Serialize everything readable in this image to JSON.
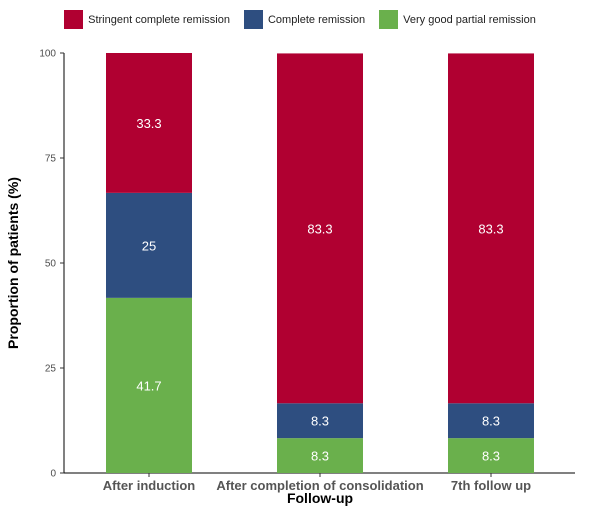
{
  "chart_data": {
    "type": "bar",
    "stacked": true,
    "categories": [
      "After induction",
      "After completion of consolidation",
      "7th follow up"
    ],
    "series": [
      {
        "name": "Very good partial remission",
        "color": "#6ab04c",
        "values": [
          41.7,
          8.3,
          8.3
        ]
      },
      {
        "name": "Complete remission",
        "color": "#2e4e80",
        "values": [
          25,
          8.3,
          8.3
        ]
      },
      {
        "name": "Stringent complete remission",
        "color": "#b00031",
        "values": [
          33.3,
          83.3,
          83.3
        ]
      }
    ],
    "data_labels": [
      [
        "41.7",
        "8.3",
        "8.3"
      ],
      [
        "25",
        "8.3",
        "8.3"
      ],
      [
        "33.3",
        "83.3",
        "83.3"
      ]
    ],
    "legend": [
      {
        "name": "Stringent complete remission",
        "color": "#b00031"
      },
      {
        "name": "Complete remission",
        "color": "#2e4e80"
      },
      {
        "name": "Very good partial remission",
        "color": "#6ab04c"
      }
    ],
    "legend_position": "top",
    "xlabel": "Follow-up",
    "ylabel": "Proportion of patients (%)",
    "ylim": [
      0,
      100
    ],
    "yticks": [
      0,
      25,
      50,
      75,
      100
    ],
    "ytick_labels": [
      "0",
      "25",
      "50",
      "75",
      "100"
    ],
    "grid": false
  }
}
